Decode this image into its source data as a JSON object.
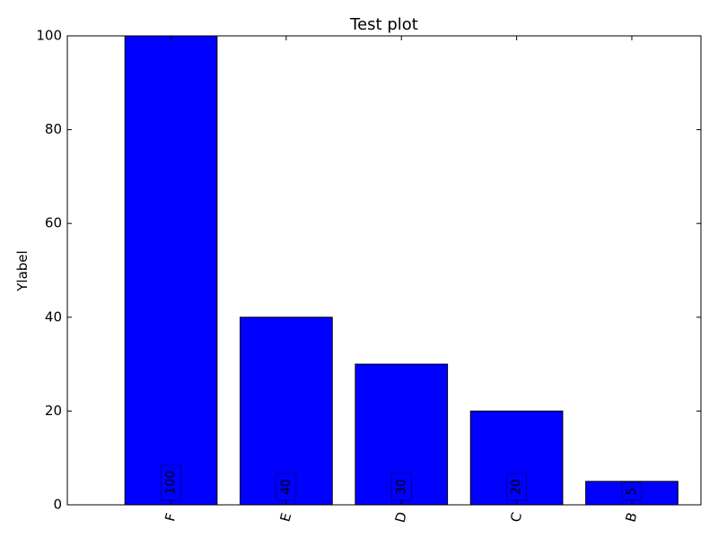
{
  "chart_data": {
    "type": "bar",
    "title": "Test plot",
    "xlabel": "",
    "ylabel": "Ylabel",
    "categories": [
      "F",
      "E",
      "D",
      "C",
      "B"
    ],
    "values": [
      100,
      40,
      30,
      20,
      5
    ],
    "data_labels": [
      "100",
      "40",
      "30",
      "20",
      "5"
    ],
    "ylim": [
      0,
      100
    ],
    "yticks": [
      0,
      20,
      40,
      60,
      80,
      100
    ],
    "ytick_labels": [
      "0",
      "20",
      "40",
      "60",
      "80",
      "100"
    ],
    "bar_color": "#0000ff",
    "grid": false,
    "legend": "none"
  }
}
